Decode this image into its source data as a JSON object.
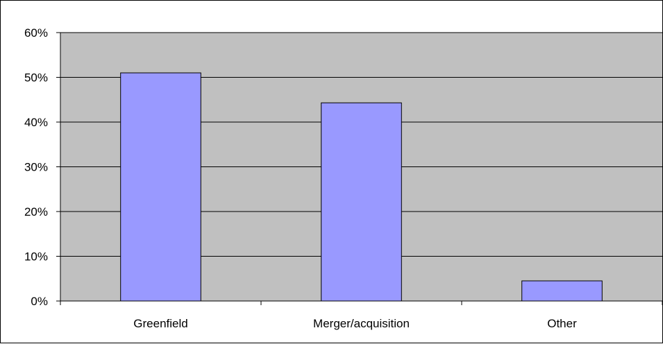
{
  "chart_data": {
    "type": "bar",
    "title": "",
    "xlabel": "",
    "ylabel": "",
    "categories": [
      "Greenfield",
      "Merger/acquisition",
      "Other"
    ],
    "values": [
      51,
      44.3,
      4.5
    ],
    "value_format": "percent",
    "ylim": [
      0,
      60
    ],
    "y_ticks": [
      0,
      10,
      20,
      30,
      40,
      50,
      60
    ],
    "y_tick_labels": [
      "0%",
      "10%",
      "20%",
      "30%",
      "40%",
      "50%",
      "60%"
    ],
    "grid": true,
    "legend": "none",
    "colors": {
      "bar_fill": "#9999ff",
      "bar_stroke": "#000000",
      "plot_background": "#c0c0c0",
      "gridline": "#000000"
    }
  }
}
